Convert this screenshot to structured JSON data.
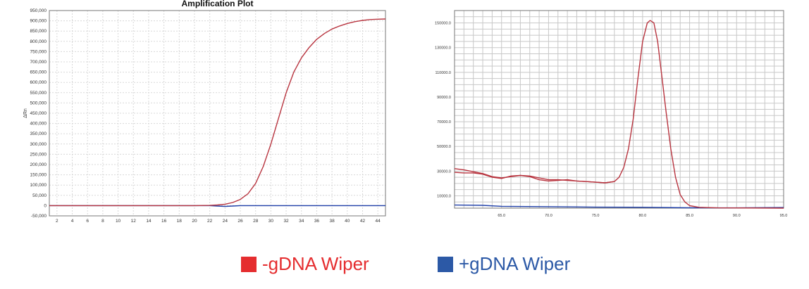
{
  "colors": {
    "neg": "#e52d2f",
    "pos": "#2c59a6",
    "curve_red": "#b8343f",
    "curve_blue": "#1f3fa8"
  },
  "legend": [
    {
      "label": "-gDNA Wiper",
      "color": "#e52d2f"
    },
    {
      "label": "+gDNA Wiper",
      "color": "#2c59a6"
    }
  ],
  "chart_data": [
    {
      "type": "line",
      "title": "Amplification Plot",
      "xlabel": "",
      "ylabel": "ΔRn",
      "xlim": [
        1,
        45
      ],
      "ylim": [
        -50000,
        950000
      ],
      "grid": true,
      "xticks": [
        2,
        4,
        6,
        8,
        10,
        12,
        14,
        16,
        18,
        20,
        22,
        24,
        26,
        28,
        30,
        32,
        34,
        36,
        38,
        40,
        42,
        44
      ],
      "yticks": [
        -50000,
        0,
        50000,
        100000,
        150000,
        200000,
        250000,
        300000,
        350000,
        400000,
        450000,
        500000,
        550000,
        600000,
        650000,
        700000,
        750000,
        800000,
        850000,
        900000,
        950000
      ],
      "ytick_labels": [
        "-50,000",
        "0",
        "50,000",
        "100,000",
        "150,000",
        "200,000",
        "250,000",
        "300,000",
        "350,000",
        "400,000",
        "450,000",
        "500,000",
        "550,000",
        "600,000",
        "650,000",
        "700,000",
        "750,000",
        "800,000",
        "850,000",
        "900,000",
        "950,000"
      ],
      "series": [
        {
          "legend": "-gDNA Wiper",
          "x": [
            1,
            20,
            22,
            23,
            24,
            25,
            26,
            27,
            28,
            29,
            30,
            31,
            32,
            33,
            34,
            35,
            36,
            37,
            38,
            39,
            40,
            41,
            42,
            43,
            44,
            45
          ],
          "y": [
            0,
            0,
            1000,
            3000,
            7000,
            15000,
            30000,
            58000,
            108000,
            190000,
            300000,
            425000,
            550000,
            650000,
            720000,
            770000,
            810000,
            838000,
            860000,
            875000,
            887000,
            896000,
            902000,
            906000,
            908000,
            909000
          ]
        },
        {
          "legend": "+gDNA Wiper",
          "x": [
            1,
            22,
            23,
            24,
            25,
            26,
            28,
            45
          ],
          "y": [
            0,
            0,
            -2000,
            -4000,
            -2000,
            0,
            0,
            0
          ]
        }
      ]
    },
    {
      "type": "line",
      "xlim": [
        60,
        95
      ],
      "ylim": [
        0,
        160000
      ],
      "grid": true,
      "xticks": [
        65,
        70,
        75,
        80,
        85,
        90,
        95
      ],
      "xtick_labels": [
        "65.0",
        "70.0",
        "75.0",
        "80.0",
        "85.0",
        "90.0",
        "95.0"
      ],
      "yticks": [
        10000,
        30000,
        50000,
        70000,
        90000,
        110000,
        130000,
        150000
      ],
      "ytick_labels": [
        "10000.0",
        "30000.0",
        "50000.0",
        "70000.0",
        "90000.0",
        "110000.0",
        "130000.0",
        "150000.0"
      ],
      "series": [
        {
          "legend": "-gDNA Wiper",
          "x": [
            60,
            61,
            62,
            63,
            64,
            65,
            66,
            67,
            68,
            69,
            70,
            71,
            72,
            73,
            74,
            75,
            76,
            77,
            77.5,
            78,
            78.5,
            79,
            79.5,
            80,
            80.5,
            80.8,
            81.2,
            81.6,
            82,
            82.5,
            83,
            83.5,
            84,
            84.5,
            85,
            86,
            88,
            95
          ],
          "y": [
            32000,
            31000,
            29500,
            28000,
            25500,
            24500,
            25500,
            26500,
            26000,
            24500,
            23000,
            23000,
            22500,
            22000,
            21500,
            21000,
            20500,
            21500,
            25000,
            33000,
            48000,
            72000,
            105000,
            135000,
            150000,
            152000,
            150000,
            135000,
            110000,
            78000,
            48000,
            25000,
            11000,
            5000,
            2000,
            700,
            200,
            0
          ]
        },
        {
          "legend": "-gDNA Wiper",
          "x": [
            60,
            61,
            62,
            63,
            64,
            65,
            66,
            67,
            68,
            69,
            70,
            71,
            72,
            73,
            74,
            75,
            76,
            77
          ],
          "y": [
            29000,
            28500,
            28500,
            27500,
            25000,
            24000,
            26000,
            26500,
            25500,
            23000,
            22000,
            22500,
            23000,
            22000,
            21500,
            21000,
            20500,
            21500
          ]
        },
        {
          "legend": "+gDNA Wiper",
          "x": [
            60,
            63,
            65,
            70,
            75,
            80,
            85,
            90,
            95
          ],
          "y": [
            2500,
            2300,
            1500,
            1200,
            800,
            700,
            300,
            200,
            500
          ]
        }
      ]
    }
  ]
}
